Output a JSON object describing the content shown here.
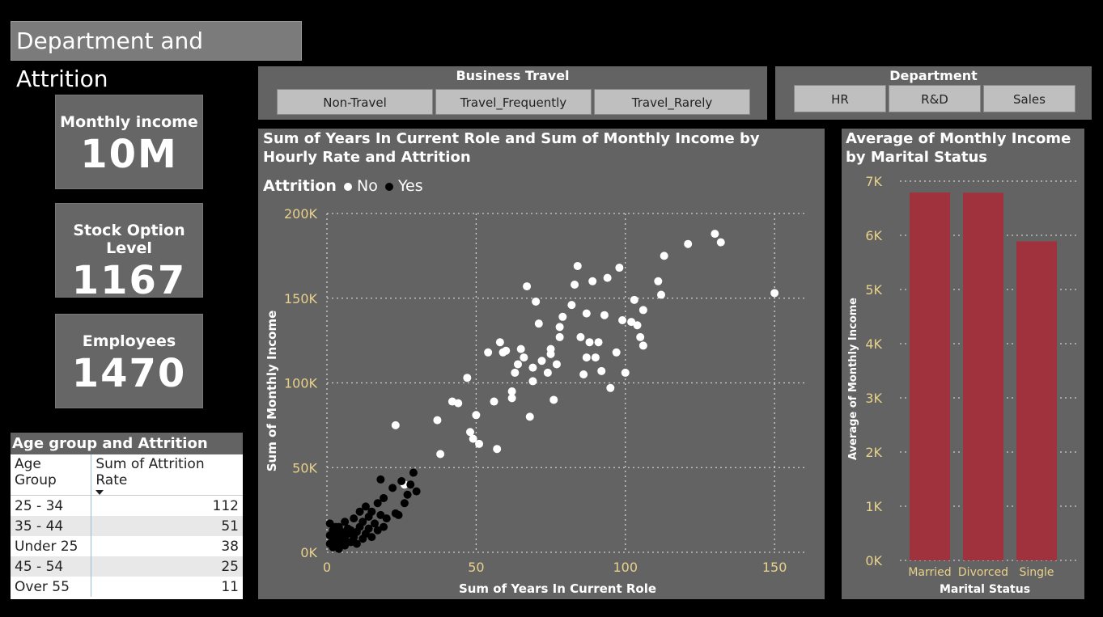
{
  "page_title": "Department and Attrition",
  "cards": [
    {
      "label": "Monthly income",
      "value": "10M"
    },
    {
      "label": "Stock Option Level",
      "value": "1167"
    },
    {
      "label": "Employees",
      "value": "1470"
    }
  ],
  "age_table": {
    "title": "Age group and Attrition rate",
    "headers": [
      "Age Group",
      "Sum of Attrition Rate"
    ],
    "rows": [
      {
        "group": "25 - 34",
        "value": "112"
      },
      {
        "group": "35 - 44",
        "value": "51"
      },
      {
        "group": "Under 25",
        "value": "38"
      },
      {
        "group": "45 - 54",
        "value": "25"
      },
      {
        "group": "Over 55",
        "value": "11"
      }
    ]
  },
  "business_travel": {
    "title": "Business Travel",
    "options": [
      "Non-Travel",
      "Travel_Frequently",
      "Travel_Rarely"
    ]
  },
  "department": {
    "title": "Department",
    "options": [
      "HR",
      "R&D",
      "Sales"
    ]
  },
  "colors": {
    "bar": "#a0323e",
    "tick": "#e8d18a",
    "panel": "#636363"
  },
  "chart_data": [
    {
      "type": "scatter",
      "title": "Sum of Years In Current Role and Sum of Monthly Income by Hourly Rate and Attrition",
      "legend_title": "Attrition",
      "legend_position": "top-left",
      "xlabel": "Sum of Years In Current Role",
      "ylabel": "Sum of Monthly Income",
      "xlim": [
        0,
        160
      ],
      "ylim": [
        0,
        200000
      ],
      "x_ticks": [
        "0",
        "50",
        "100",
        "150"
      ],
      "y_ticks": [
        "0K",
        "50K",
        "100K",
        "150K",
        "200K"
      ],
      "grid": true,
      "series": [
        {
          "name": "No",
          "color": "#ffffff",
          "points": [
            [
              23,
              75000
            ],
            [
              37,
              78000
            ],
            [
              38,
              58000
            ],
            [
              42,
              89000
            ],
            [
              44,
              88000
            ],
            [
              47,
              103000
            ],
            [
              48,
              71000
            ],
            [
              49,
              67000
            ],
            [
              50,
              81000
            ],
            [
              51,
              64000
            ],
            [
              54,
              118000
            ],
            [
              56,
              89000
            ],
            [
              57,
              61000
            ],
            [
              58,
              124000
            ],
            [
              59,
              118000
            ],
            [
              60,
              119000
            ],
            [
              62,
              91000
            ],
            [
              62,
              95000
            ],
            [
              63,
              106000
            ],
            [
              64,
              111000
            ],
            [
              65,
              120000
            ],
            [
              66,
              115000
            ],
            [
              67,
              157000
            ],
            [
              68,
              80000
            ],
            [
              69,
              109000
            ],
            [
              69,
              101000
            ],
            [
              70,
              148000
            ],
            [
              71,
              135000
            ],
            [
              72,
              113000
            ],
            [
              74,
              106000
            ],
            [
              75,
              117000
            ],
            [
              75,
              120000
            ],
            [
              76,
              90000
            ],
            [
              77,
              111000
            ],
            [
              78,
              127000
            ],
            [
              78,
              133000
            ],
            [
              79,
              139000
            ],
            [
              82,
              146000
            ],
            [
              83,
              158000
            ],
            [
              84,
              169000
            ],
            [
              85,
              127000
            ],
            [
              86,
              105000
            ],
            [
              87,
              115000
            ],
            [
              87,
              141000
            ],
            [
              88,
              124000
            ],
            [
              89,
              160000
            ],
            [
              90,
              115000
            ],
            [
              91,
              124000
            ],
            [
              92,
              107000
            ],
            [
              93,
              140000
            ],
            [
              94,
              162000
            ],
            [
              95,
              97000
            ],
            [
              97,
              118000
            ],
            [
              98,
              168000
            ],
            [
              99,
              137000
            ],
            [
              100,
              106000
            ],
            [
              102,
              136000
            ],
            [
              103,
              149000
            ],
            [
              104,
              134000
            ],
            [
              105,
              127000
            ],
            [
              106,
              122000
            ],
            [
              106,
              143000
            ],
            [
              111,
              160000
            ],
            [
              112,
              152000
            ],
            [
              113,
              175000
            ],
            [
              121,
              182000
            ],
            [
              130,
              188000
            ],
            [
              132,
              183000
            ],
            [
              150,
              153000
            ],
            [
              26,
              40000
            ]
          ]
        },
        {
          "name": "Yes",
          "color": "#000000",
          "points": [
            [
              1,
              5000
            ],
            [
              1,
              10000
            ],
            [
              1,
              17000
            ],
            [
              2,
              3000
            ],
            [
              2,
              8000
            ],
            [
              2,
              13000
            ],
            [
              3,
              6000
            ],
            [
              3,
              11000
            ],
            [
              4,
              2000
            ],
            [
              4,
              9000
            ],
            [
              4,
              15000
            ],
            [
              5,
              6000
            ],
            [
              5,
              12000
            ],
            [
              6,
              4000
            ],
            [
              6,
              8000
            ],
            [
              6,
              18000
            ],
            [
              7,
              11000
            ],
            [
              7,
              14000
            ],
            [
              8,
              6000
            ],
            [
              8,
              13000
            ],
            [
              9,
              9000
            ],
            [
              9,
              20000
            ],
            [
              10,
              5000
            ],
            [
              10,
              12000
            ],
            [
              11,
              15000
            ],
            [
              11,
              24000
            ],
            [
              12,
              8000
            ],
            [
              12,
              18000
            ],
            [
              13,
              11000
            ],
            [
              13,
              27000
            ],
            [
              14,
              14000
            ],
            [
              14,
              21000
            ],
            [
              15,
              9000
            ],
            [
              15,
              24000
            ],
            [
              16,
              17000
            ],
            [
              17,
              13000
            ],
            [
              17,
              29000
            ],
            [
              18,
              22000
            ],
            [
              18,
              43000
            ],
            [
              19,
              15000
            ],
            [
              19,
              32000
            ],
            [
              20,
              20000
            ],
            [
              22,
              38000
            ],
            [
              23,
              23000
            ],
            [
              24,
              22000
            ],
            [
              25,
              42000
            ],
            [
              26,
              29000
            ],
            [
              27,
              34000
            ],
            [
              28,
              40000
            ],
            [
              29,
              47000
            ],
            [
              30,
              36000
            ],
            [
              3,
              15000
            ]
          ]
        }
      ]
    },
    {
      "type": "bar",
      "title": "Average of Monthly Income by Marital Status",
      "categories": [
        "Married",
        "Divorced",
        "Single"
      ],
      "values": [
        6790,
        6786,
        5890
      ],
      "xlabel": "Marital Status",
      "ylabel": "Average of Monthly Income",
      "ylim": [
        0,
        7000
      ],
      "y_ticks": [
        "0K",
        "1K",
        "2K",
        "3K",
        "4K",
        "5K",
        "6K",
        "7K"
      ],
      "grid": true
    }
  ]
}
